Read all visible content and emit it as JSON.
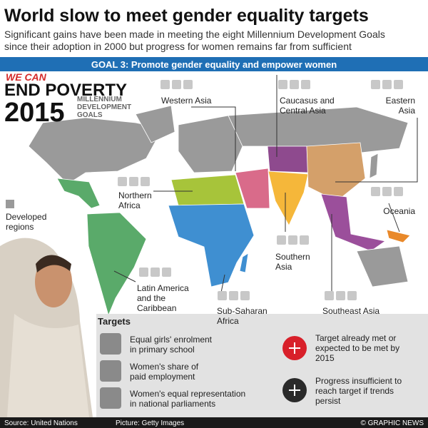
{
  "header": {
    "title": "World slow to meet gender equality targets",
    "subtitle": [
      "Significant gains have been made in meeting the eight Millennium Development Goals",
      "since their adoption in 2000 but progress for women remains far from sufficient"
    ]
  },
  "goal_banner": "GOAL 3: Promote gender equality and empower women",
  "logo": {
    "slogan": "WE CAN",
    "headline": "END POVERTY",
    "year": "2015",
    "tagline": [
      "MILLENNIUM",
      "DEVELOPMENT",
      "GOALS"
    ]
  },
  "regions": [
    {
      "label": [
        "Western Asia"
      ]
    },
    {
      "label": [
        "Caucasus and",
        "Central Asia"
      ]
    },
    {
      "label": [
        "Eastern",
        "Asia"
      ]
    },
    {
      "label": [
        "Northern",
        "Africa"
      ]
    },
    {
      "label": [
        "Oceania"
      ]
    },
    {
      "label": [
        "Southern",
        "Asia"
      ]
    },
    {
      "label": [
        "Latin America",
        "and the",
        "Caribbean"
      ]
    },
    {
      "label": [
        "Sub-Saharan",
        "Africa"
      ]
    },
    {
      "label": [
        "Southeast Asia"
      ]
    }
  ],
  "developed": [
    "Developed",
    "regions"
  ],
  "targets": {
    "title": "Targets",
    "items": [
      [
        "Equal girls' enrolment",
        "in primary school"
      ],
      [
        "Women's share of",
        "paid employment"
      ],
      [
        "Women's equal representation",
        "in national parliaments"
      ]
    ]
  },
  "key": [
    [
      "Target already met or",
      "expected to be met by",
      "2015"
    ],
    [
      "Progress insufficient to",
      "reach target if trends",
      "persist"
    ]
  ],
  "footer": {
    "source": "Source: United Nations",
    "picture": "Picture: Getty Images",
    "credit": "© GRAPHIC NEWS"
  }
}
